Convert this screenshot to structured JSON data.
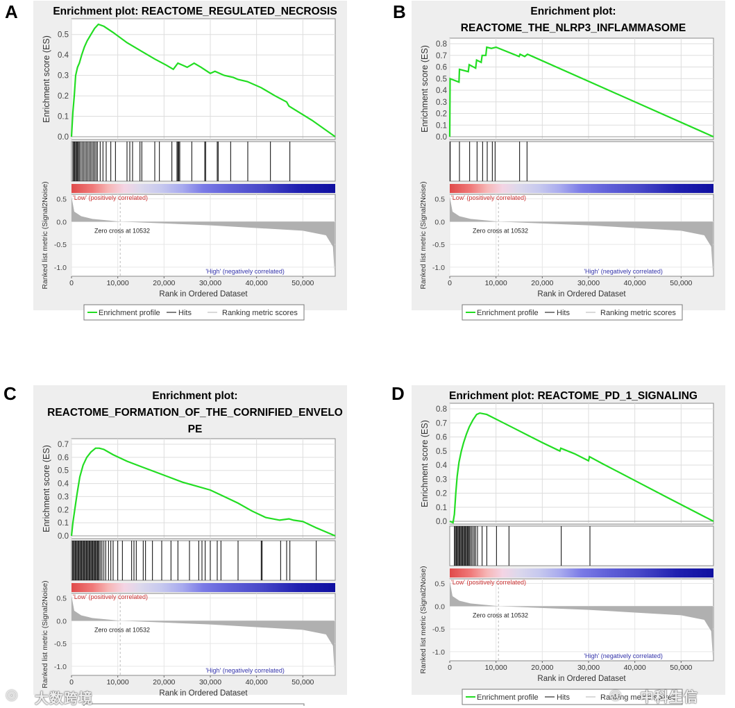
{
  "panel_letters": [
    "A",
    "B",
    "C",
    "D"
  ],
  "shared": {
    "es_axis_label": "Enrichment score (ES)",
    "metric_axis_label": "Ranked list metric (Signal2Noise)",
    "x_axis_label": "Rank in Ordered Dataset",
    "low_label": "'Low' (positively correlated)",
    "high_label": "'High' (negatively correlated)",
    "zero_cross_label": "Zero cross at 10532",
    "x_ticks": [
      "0",
      "10,000",
      "20,000",
      "30,000",
      "40,000",
      "50,000"
    ],
    "metric_ticks": [
      "0.5",
      "0.0",
      "-0.5",
      "-1.0"
    ],
    "legend": {
      "profile": "Enrichment profile",
      "hits": "Hits",
      "metric": "Ranking metric scores"
    },
    "colors": {
      "profile": "#22dd22",
      "hits": "#000000",
      "panel_bg": "#eeeeee",
      "low": "#cc3333",
      "high": "#3333aa",
      "metric_fill": "#b0b0b0"
    }
  },
  "watermarks": {
    "left": "大数跨境",
    "right": "中科生信"
  },
  "chart_data": [
    {
      "type": "line",
      "title_lines": [
        "Enrichment plot: REACTOME_REGULATED_NECROSIS"
      ],
      "xlim": [
        0,
        57000
      ],
      "ylim": [
        0,
        0.55
      ],
      "es_ticks": [
        "0.0",
        "0.1",
        "0.2",
        "0.3",
        "0.4",
        "0.5"
      ],
      "es_tick_values": [
        0,
        0.1,
        0.2,
        0.3,
        0.4,
        0.5
      ],
      "zero_cross": 10532,
      "es_curve": [
        [
          0,
          0
        ],
        [
          300,
          0.12
        ],
        [
          600,
          0.2
        ],
        [
          900,
          0.3
        ],
        [
          1300,
          0.34
        ],
        [
          1700,
          0.36
        ],
        [
          2200,
          0.4
        ],
        [
          2800,
          0.44
        ],
        [
          3400,
          0.47
        ],
        [
          4200,
          0.5
        ],
        [
          5000,
          0.53
        ],
        [
          5800,
          0.55
        ],
        [
          7000,
          0.54
        ],
        [
          9000,
          0.51
        ],
        [
          12000,
          0.46
        ],
        [
          15000,
          0.42
        ],
        [
          18000,
          0.38
        ],
        [
          20500,
          0.35
        ],
        [
          22000,
          0.33
        ],
        [
          23000,
          0.36
        ],
        [
          24000,
          0.35
        ],
        [
          25000,
          0.34
        ],
        [
          26500,
          0.36
        ],
        [
          28000,
          0.34
        ],
        [
          30000,
          0.31
        ],
        [
          31000,
          0.32
        ],
        [
          33000,
          0.3
        ],
        [
          35000,
          0.29
        ],
        [
          36000,
          0.28
        ],
        [
          38000,
          0.27
        ],
        [
          41000,
          0.24
        ],
        [
          44000,
          0.2
        ],
        [
          46500,
          0.17
        ],
        [
          47000,
          0.15
        ],
        [
          52000,
          0.08
        ],
        [
          57000,
          0
        ]
      ],
      "hits": [
        300,
        500,
        700,
        900,
        1100,
        1300,
        1500,
        1700,
        2000,
        2300,
        2600,
        2900,
        3200,
        3500,
        3800,
        4100,
        4400,
        4700,
        5000,
        5300,
        5600,
        6200,
        6800,
        7500,
        8500,
        9500,
        12000,
        12600,
        13200,
        14800,
        15200,
        18000,
        19000,
        21700,
        22800,
        23000,
        23200,
        23400,
        26000,
        28800,
        29000,
        31500,
        31700,
        34400,
        38100,
        43000,
        47200
      ]
    },
    {
      "type": "line",
      "title_lines": [
        "Enrichment plot:",
        "REACTOME_THE_NLRP3_INFLAMMASOME"
      ],
      "xlim": [
        0,
        57000
      ],
      "ylim": [
        0,
        0.8
      ],
      "es_ticks": [
        "0.0",
        "0.1",
        "0.2",
        "0.3",
        "0.4",
        "0.5",
        "0.6",
        "0.7",
        "0.8"
      ],
      "es_tick_values": [
        0,
        0.1,
        0.2,
        0.3,
        0.4,
        0.5,
        0.6,
        0.7,
        0.8
      ],
      "zero_cross": 10532,
      "es_curve": [
        [
          0,
          0
        ],
        [
          80,
          0.5
        ],
        [
          2000,
          0.47
        ],
        [
          2100,
          0.58
        ],
        [
          4000,
          0.56
        ],
        [
          4200,
          0.62
        ],
        [
          5600,
          0.59
        ],
        [
          5800,
          0.66
        ],
        [
          6800,
          0.64
        ],
        [
          7000,
          0.7
        ],
        [
          7800,
          0.7
        ],
        [
          8000,
          0.77
        ],
        [
          9000,
          0.76
        ],
        [
          10000,
          0.77
        ],
        [
          15000,
          0.69
        ],
        [
          15200,
          0.71
        ],
        [
          16200,
          0.69
        ],
        [
          16800,
          0.71
        ],
        [
          57000,
          0
        ]
      ],
      "hits": [
        100,
        2100,
        4300,
        5900,
        7100,
        8100,
        9200,
        9800,
        15100,
        16700
      ]
    },
    {
      "type": "line",
      "title_lines": [
        "Enrichment plot:",
        "REACTOME_FORMATION_OF_THE_CORNIFIED_ENVELO",
        "PE"
      ],
      "xlim": [
        0,
        57000
      ],
      "ylim": [
        0,
        0.7
      ],
      "es_ticks": [
        "0.0",
        "0.1",
        "0.2",
        "0.3",
        "0.4",
        "0.5",
        "0.6",
        "0.7"
      ],
      "es_tick_values": [
        0,
        0.1,
        0.2,
        0.3,
        0.4,
        0.5,
        0.6,
        0.7
      ],
      "zero_cross": 10532,
      "es_curve": [
        [
          0,
          0
        ],
        [
          300,
          0.1
        ],
        [
          700,
          0.2
        ],
        [
          1200,
          0.32
        ],
        [
          1800,
          0.45
        ],
        [
          2500,
          0.54
        ],
        [
          3300,
          0.6
        ],
        [
          4200,
          0.64
        ],
        [
          5200,
          0.67
        ],
        [
          6000,
          0.67
        ],
        [
          7000,
          0.66
        ],
        [
          9000,
          0.62
        ],
        [
          12000,
          0.57
        ],
        [
          15000,
          0.53
        ],
        [
          18000,
          0.49
        ],
        [
          21000,
          0.45
        ],
        [
          24000,
          0.41
        ],
        [
          27000,
          0.38
        ],
        [
          30000,
          0.35
        ],
        [
          33000,
          0.3
        ],
        [
          36000,
          0.25
        ],
        [
          39000,
          0.19
        ],
        [
          42000,
          0.14
        ],
        [
          45000,
          0.12
        ],
        [
          47000,
          0.13
        ],
        [
          48000,
          0.12
        ],
        [
          50000,
          0.11
        ],
        [
          53000,
          0.06
        ],
        [
          57000,
          0
        ]
      ],
      "hits": [
        200,
        400,
        600,
        800,
        1000,
        1200,
        1400,
        1600,
        1800,
        2000,
        2200,
        2400,
        2600,
        2800,
        3000,
        3200,
        3400,
        3600,
        3800,
        4000,
        4200,
        4400,
        4600,
        4800,
        5000,
        5200,
        5400,
        5600,
        5800,
        6000,
        6300,
        6600,
        7000,
        7400,
        8000,
        8500,
        9000,
        10000,
        11000,
        13000,
        13500,
        14000,
        15500,
        16000,
        17500,
        19500,
        21500,
        23000,
        25500,
        27500,
        28200,
        28900,
        30000,
        31500,
        32300,
        36000,
        41000,
        41200,
        45200,
        46500,
        47200,
        52900
      ]
    },
    {
      "type": "line",
      "title_lines": [
        "Enrichment plot: REACTOME_PD_1_SIGNALING"
      ],
      "xlim": [
        0,
        57000
      ],
      "ylim": [
        0,
        0.8
      ],
      "es_ticks": [
        "0.0",
        "0.1",
        "0.2",
        "0.3",
        "0.4",
        "0.5",
        "0.6",
        "0.7",
        "0.8"
      ],
      "es_tick_values": [
        0,
        0.1,
        0.2,
        0.3,
        0.4,
        0.5,
        0.6,
        0.7,
        0.8
      ],
      "zero_cross": 10532,
      "es_curve": [
        [
          0,
          0
        ],
        [
          700,
          -0.01
        ],
        [
          1000,
          0.05
        ],
        [
          1300,
          0.2
        ],
        [
          1600,
          0.32
        ],
        [
          2000,
          0.42
        ],
        [
          2500,
          0.5
        ],
        [
          3000,
          0.56
        ],
        [
          3600,
          0.62
        ],
        [
          4200,
          0.67
        ],
        [
          5000,
          0.72
        ],
        [
          5800,
          0.76
        ],
        [
          6500,
          0.77
        ],
        [
          8000,
          0.76
        ],
        [
          11000,
          0.71
        ],
        [
          14000,
          0.66
        ],
        [
          17000,
          0.61
        ],
        [
          20000,
          0.56
        ],
        [
          23800,
          0.5
        ],
        [
          24000,
          0.52
        ],
        [
          27000,
          0.48
        ],
        [
          30000,
          0.43
        ],
        [
          30200,
          0.46
        ],
        [
          33000,
          0.41
        ],
        [
          40000,
          0.29
        ],
        [
          47000,
          0.17
        ],
        [
          57000,
          0
        ]
      ],
      "hits": [
        1000,
        1200,
        1400,
        1600,
        1800,
        2000,
        2200,
        2400,
        2600,
        2800,
        3000,
        3200,
        3400,
        3600,
        3800,
        4000,
        4200,
        4400,
        4700,
        5000,
        5300,
        5600,
        6000,
        7000,
        8000,
        10100,
        12800,
        24100,
        30300
      ]
    }
  ]
}
